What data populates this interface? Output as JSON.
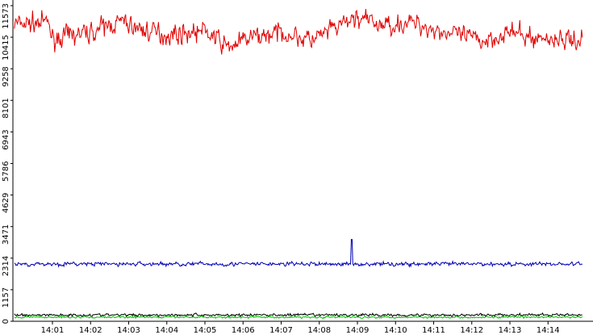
{
  "chart_data": {
    "type": "line",
    "title": "",
    "xlabel": "",
    "ylabel": "",
    "x_tick_labels": [
      "14:01",
      "14:02",
      "14:03",
      "14:04",
      "14:05",
      "14:06",
      "14:07",
      "14:08",
      "14:09",
      "14:10",
      "14:11",
      "14:12",
      "14:13",
      "14:14"
    ],
    "y_tick_labels": [
      "0",
      "1157",
      "2314",
      "3471",
      "4629",
      "5786",
      "6943",
      "8101",
      "9258",
      "10415",
      "11573"
    ],
    "ylim": [
      0,
      11573
    ],
    "xlim_minutes": [
      0.0,
      14.9
    ],
    "grid": false,
    "legend": "none",
    "sample_step_minutes": 0.02,
    "series": [
      {
        "color": "#e00000",
        "baseline": 10750,
        "noise": 420,
        "segments": [
          [
            0.0,
            10900
          ],
          [
            0.9,
            10950
          ],
          [
            1.0,
            10350
          ],
          [
            2.0,
            10600
          ],
          [
            2.8,
            11000
          ],
          [
            3.3,
            10700
          ],
          [
            4.0,
            10500
          ],
          [
            5.0,
            10650
          ],
          [
            5.6,
            10050
          ],
          [
            6.2,
            10400
          ],
          [
            7.0,
            10600
          ],
          [
            7.8,
            10300
          ],
          [
            8.5,
            10800
          ],
          [
            9.0,
            11150
          ],
          [
            9.6,
            10850
          ],
          [
            10.5,
            10950
          ],
          [
            11.0,
            10700
          ],
          [
            11.6,
            10500
          ],
          [
            12.3,
            10300
          ],
          [
            13.0,
            10600
          ],
          [
            13.5,
            10400
          ],
          [
            14.9,
            10300
          ]
        ]
      },
      {
        "color": "#0000b4",
        "baseline": 2100,
        "noise": 90,
        "spike": {
          "x": 8.85,
          "y": 3000
        },
        "segments": [
          [
            0.0,
            2100
          ],
          [
            14.9,
            2100
          ]
        ]
      },
      {
        "color": "#000000",
        "baseline": 230,
        "noise": 60,
        "segments": [
          [
            0.0,
            230
          ],
          [
            14.9,
            230
          ]
        ]
      },
      {
        "color": "#00c000",
        "baseline": 150,
        "noise": 40,
        "segments": [
          [
            0.0,
            150
          ],
          [
            14.9,
            150
          ]
        ]
      }
    ]
  }
}
